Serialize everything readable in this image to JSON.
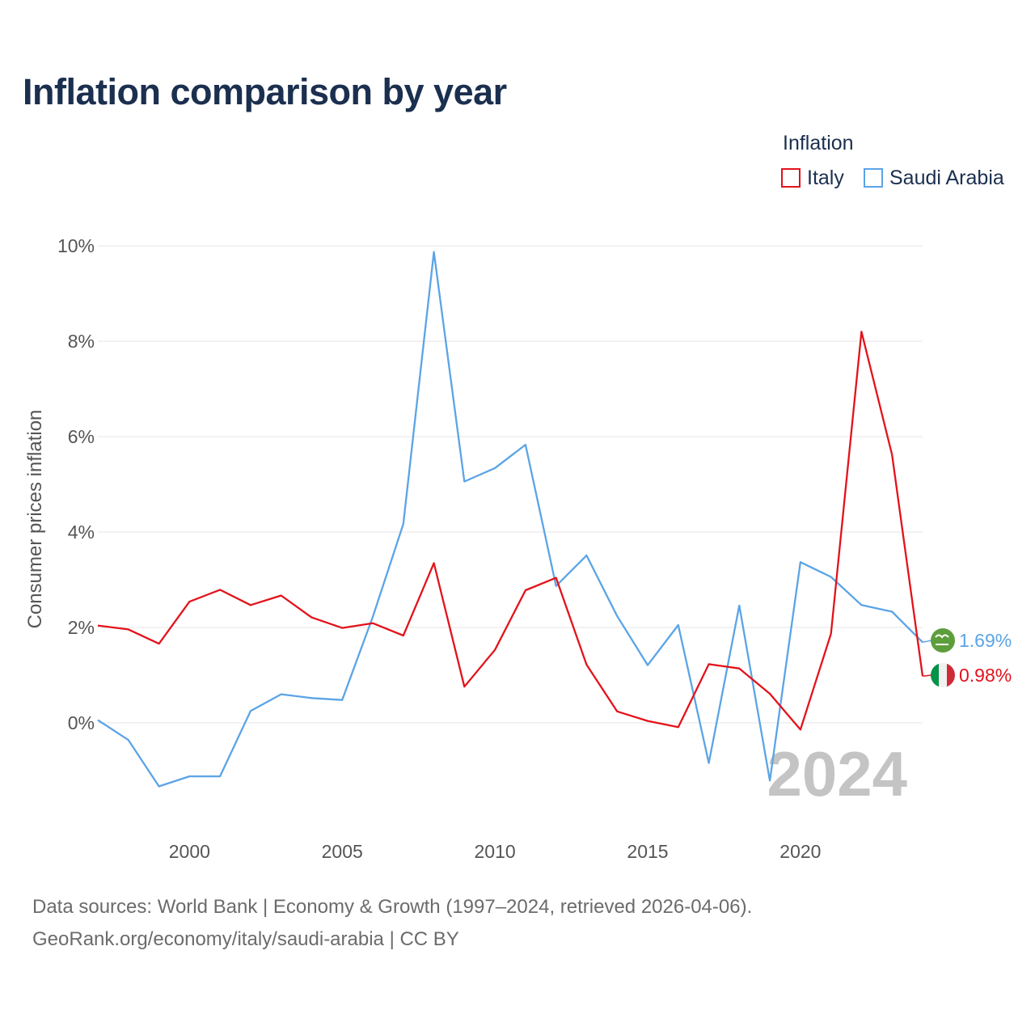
{
  "title": "Inflation comparison by year",
  "legend": {
    "title": "Inflation",
    "items": [
      {
        "label": "Italy",
        "color": "#e3121b"
      },
      {
        "label": "Saudi Arabia",
        "color": "#5ba4e6"
      }
    ]
  },
  "footer": {
    "line1": "Data sources: World Bank | Economy & Growth (1997–2024, retrieved 2026-04-06).",
    "line2": "GeoRank.org/economy/italy/saudi-arabia | CC BY"
  },
  "chart_data": {
    "type": "line",
    "title": "Inflation comparison by year",
    "xlabel": "",
    "ylabel": "Consumer prices inflation",
    "xlim": [
      1997,
      2024
    ],
    "ylim": [
      -2,
      10
    ],
    "grid": true,
    "y_ticks": [
      0,
      2,
      4,
      6,
      8,
      10
    ],
    "y_tick_labels": [
      "0%",
      "2%",
      "4%",
      "6%",
      "8%",
      "10%"
    ],
    "x_ticks": [
      2000,
      2005,
      2010,
      2015,
      2020
    ],
    "x_tick_labels": [
      "2000",
      "2005",
      "2010",
      "2015",
      "2020"
    ],
    "x": [
      1997,
      1998,
      1999,
      2000,
      2001,
      2002,
      2003,
      2004,
      2005,
      2006,
      2007,
      2008,
      2009,
      2010,
      2011,
      2012,
      2013,
      2014,
      2015,
      2016,
      2017,
      2018,
      2019,
      2020,
      2021,
      2022,
      2023,
      2024
    ],
    "series": [
      {
        "name": "Italy",
        "color": "#e3121b",
        "values": [
          2.04,
          1.96,
          1.66,
          2.54,
          2.79,
          2.47,
          2.67,
          2.21,
          1.99,
          2.09,
          1.83,
          3.35,
          0.76,
          1.53,
          2.78,
          3.04,
          1.22,
          0.24,
          0.04,
          -0.09,
          1.23,
          1.14,
          0.61,
          -0.14,
          1.87,
          8.2,
          5.62,
          0.98
        ],
        "end_label": "0.98%",
        "end_icon": "italy-flag-icon"
      },
      {
        "name": "Saudi Arabia",
        "color": "#5ba4e6",
        "values": [
          0.06,
          -0.36,
          -1.33,
          -1.12,
          -1.12,
          0.25,
          0.6,
          0.52,
          0.48,
          2.22,
          4.17,
          9.87,
          5.06,
          5.34,
          5.83,
          2.87,
          3.51,
          2.24,
          1.21,
          2.05,
          -0.84,
          2.46,
          -1.21,
          3.37,
          3.06,
          2.47,
          2.33,
          1.69
        ],
        "end_label": "1.69%",
        "end_icon": "saudi-flag-icon"
      }
    ],
    "annotation": "2024"
  }
}
